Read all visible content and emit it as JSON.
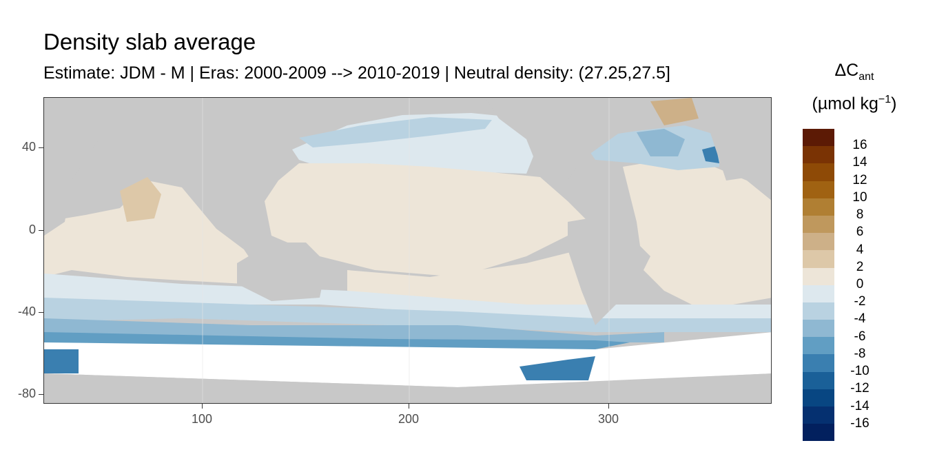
{
  "title": "Density slab average",
  "subtitle": "Estimate: JDM - M | Eras: 2000-2009 --> 2010-2019 | Neutral density: (27.25,27.5]",
  "legend": {
    "title_base": "ΔC",
    "title_sub": "ant",
    "unit_text": "(µmol kg",
    "unit_sup": "−1",
    "unit_close": ")",
    "labels": [
      "16",
      "14",
      "12",
      "10",
      "8",
      "6",
      "4",
      "2",
      "0",
      "-2",
      "-4",
      "-6",
      "-8",
      "-10",
      "-12",
      "-14",
      "-16"
    ],
    "colors": [
      "#5c1a05",
      "#7a3304",
      "#8e4a06",
      "#a06212",
      "#b07f33",
      "#bf985d",
      "#cdb088",
      "#ddc8a8",
      "#ede5d8",
      "#dde8ee",
      "#b9d2e1",
      "#8fb8d2",
      "#619ec3",
      "#3a7fb0",
      "#1a6098",
      "#084682",
      "#053070",
      "#02205e"
    ]
  },
  "axes": {
    "y_ticks": [
      "40",
      "0",
      "-40",
      "-80"
    ],
    "x_ticks": [
      "100",
      "200",
      "300"
    ]
  },
  "colors": {
    "land": "#c8c8c8",
    "no_data": "#ffffff",
    "grid": "#e6e6e6"
  }
}
